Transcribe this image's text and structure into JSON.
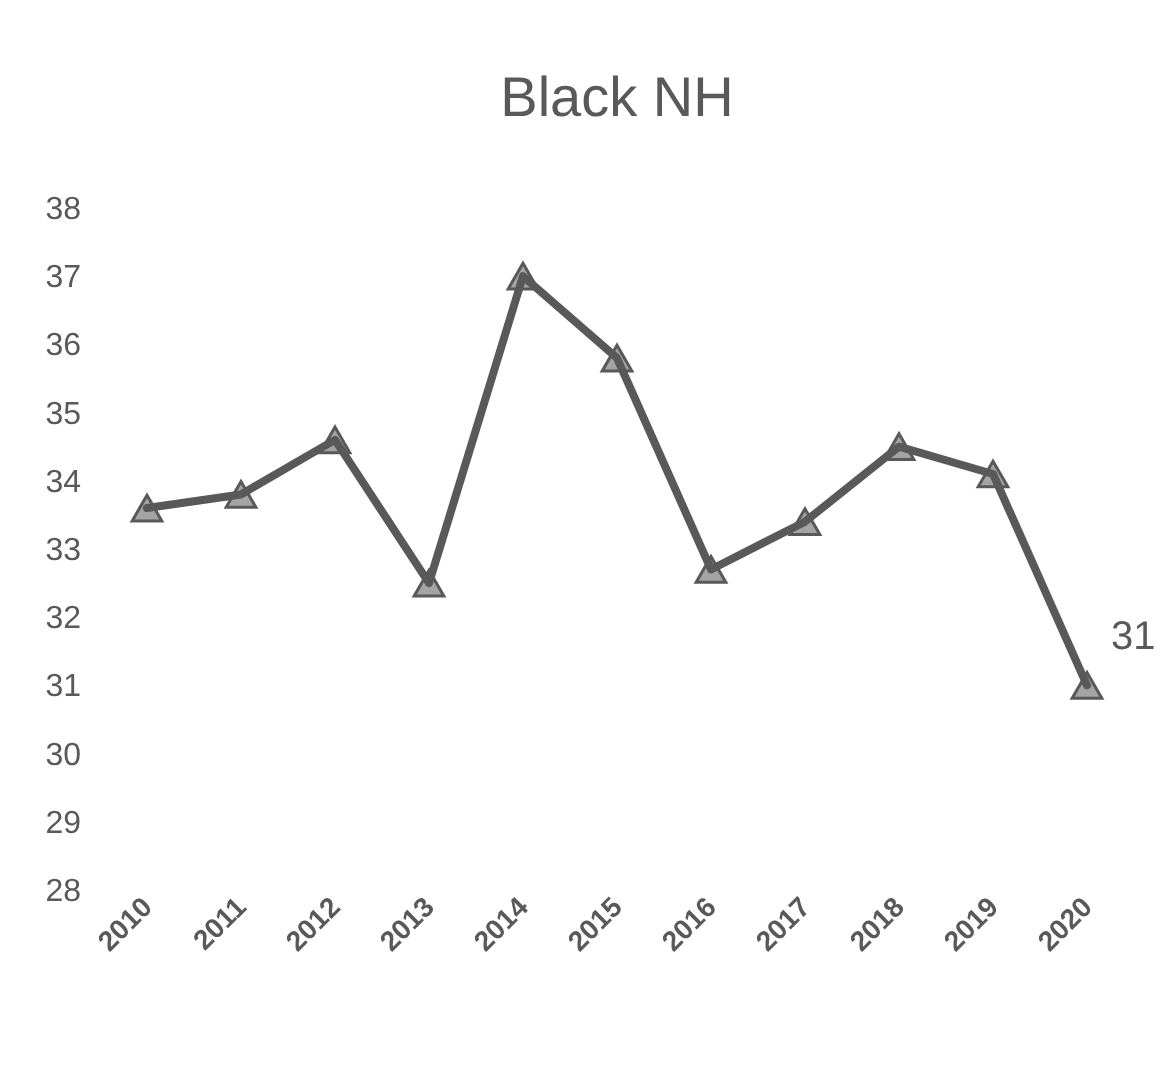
{
  "chart_data": {
    "type": "line",
    "title": "Black NH",
    "categories": [
      "2010",
      "2011",
      "2012",
      "2013",
      "2014",
      "2015",
      "2016",
      "2017",
      "2018",
      "2019",
      "2020"
    ],
    "series": [
      {
        "color": "#595959",
        "values": [
          33.6,
          33.8,
          34.6,
          32.5,
          37.0,
          35.8,
          32.7,
          33.4,
          34.5,
          34.1,
          31.0
        ],
        "value_labels": [
          null,
          null,
          null,
          null,
          null,
          null,
          null,
          null,
          null,
          null,
          "31"
        ]
      }
    ],
    "ylim": [
      28,
      38
    ],
    "yticks": [
      28,
      29,
      30,
      31,
      32,
      33,
      34,
      35,
      36,
      37,
      38
    ],
    "marker": "triangle",
    "line_style": "solid",
    "grid": false
  }
}
